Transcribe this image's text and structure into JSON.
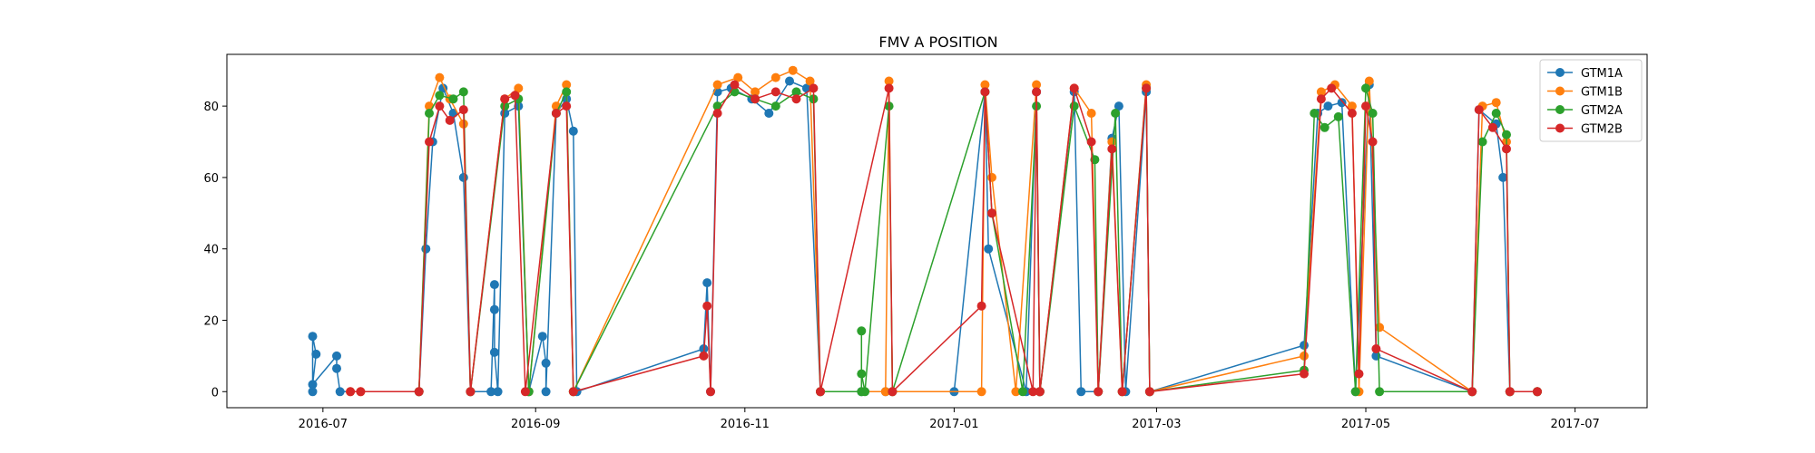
{
  "chart_data": {
    "type": "line",
    "title": "FMV A POSITION",
    "xlabel": "",
    "ylabel": "",
    "xlim": [
      "2016-06-03",
      "2017-07-22"
    ],
    "ylim": [
      -4.5,
      94.5
    ],
    "x_ticks": [
      "2016-07",
      "2016-09",
      "2016-11",
      "2017-01",
      "2017-03",
      "2017-05",
      "2017-07"
    ],
    "x_tick_dates": [
      "2016-07-01",
      "2016-09-01",
      "2016-11-01",
      "2017-01-01",
      "2017-03-01",
      "2017-05-01",
      "2017-07-01"
    ],
    "y_ticks": [
      0,
      20,
      40,
      60,
      80
    ],
    "legend": {
      "position": "top-right"
    },
    "grid": false,
    "markers": true,
    "series": [
      {
        "name": "GTM1A",
        "color": "#1f77b4",
        "points": [
          [
            "2016-06-28",
            0
          ],
          [
            "2016-06-28",
            15.5
          ],
          [
            "2016-06-29",
            10.5
          ],
          [
            "2016-06-28",
            2
          ],
          [
            "2016-07-05",
            10
          ],
          [
            "2016-07-05",
            6.5
          ],
          [
            "2016-07-06",
            0
          ],
          [
            "2016-07-29",
            0
          ],
          [
            "2016-07-31",
            40
          ],
          [
            "2016-08-02",
            70
          ],
          [
            "2016-08-05",
            85
          ],
          [
            "2016-08-08",
            78
          ],
          [
            "2016-08-11",
            60
          ],
          [
            "2016-08-13",
            0
          ],
          [
            "2016-08-19",
            0
          ],
          [
            "2016-08-20",
            30
          ],
          [
            "2016-08-20",
            23
          ],
          [
            "2016-08-20",
            11
          ],
          [
            "2016-08-21",
            0
          ],
          [
            "2016-08-23",
            78
          ],
          [
            "2016-08-27",
            80
          ],
          [
            "2016-08-30",
            0
          ],
          [
            "2016-09-03",
            15.5
          ],
          [
            "2016-09-04",
            8
          ],
          [
            "2016-09-04",
            0
          ],
          [
            "2016-09-07",
            78
          ],
          [
            "2016-09-10",
            82
          ],
          [
            "2016-09-12",
            73
          ],
          [
            "2016-09-13",
            0
          ],
          [
            "2016-10-20",
            12
          ],
          [
            "2016-10-21",
            30.5
          ],
          [
            "2016-10-22",
            0
          ],
          [
            "2016-10-24",
            84
          ],
          [
            "2016-10-28",
            85
          ],
          [
            "2016-11-03",
            82
          ],
          [
            "2016-11-08",
            78
          ],
          [
            "2016-11-14",
            87
          ],
          [
            "2016-11-19",
            85
          ],
          [
            "2016-11-23",
            0
          ],
          [
            "2016-12-05",
            0
          ],
          [
            "2016-12-12",
            0
          ],
          [
            "2017-01-01",
            0
          ],
          [
            "2017-01-10",
            84
          ],
          [
            "2017-01-11",
            40
          ],
          [
            "2017-01-22",
            0
          ],
          [
            "2017-01-25",
            84
          ],
          [
            "2017-01-26",
            0
          ],
          [
            "2017-02-05",
            84
          ],
          [
            "2017-02-07",
            0
          ],
          [
            "2017-02-12",
            0
          ],
          [
            "2017-02-16",
            71
          ],
          [
            "2017-02-18",
            80
          ],
          [
            "2017-02-20",
            0
          ],
          [
            "2017-02-26",
            84
          ],
          [
            "2017-02-27",
            0
          ],
          [
            "2017-04-13",
            13
          ],
          [
            "2017-04-17",
            78
          ],
          [
            "2017-04-20",
            80
          ],
          [
            "2017-04-24",
            81
          ],
          [
            "2017-04-28",
            0
          ],
          [
            "2017-05-02",
            86
          ],
          [
            "2017-05-04",
            10
          ],
          [
            "2017-06-01",
            0
          ],
          [
            "2017-06-03",
            79
          ],
          [
            "2017-06-08",
            75
          ],
          [
            "2017-06-10",
            60
          ],
          [
            "2017-06-12",
            0
          ],
          [
            "2017-06-20",
            0
          ]
        ]
      },
      {
        "name": "GTM1B",
        "color": "#ff7f0e",
        "points": [
          [
            "2016-07-09",
            0
          ],
          [
            "2016-07-12",
            0
          ],
          [
            "2016-07-29",
            0
          ],
          [
            "2016-08-01",
            80
          ],
          [
            "2016-08-04",
            88
          ],
          [
            "2016-08-07",
            82
          ],
          [
            "2016-08-11",
            75
          ],
          [
            "2016-08-13",
            0
          ],
          [
            "2016-08-23",
            82
          ],
          [
            "2016-08-27",
            85
          ],
          [
            "2016-08-30",
            0
          ],
          [
            "2016-09-07",
            80
          ],
          [
            "2016-09-10",
            86
          ],
          [
            "2016-09-12",
            0
          ],
          [
            "2016-10-24",
            86
          ],
          [
            "2016-10-30",
            88
          ],
          [
            "2016-11-04",
            84
          ],
          [
            "2016-11-10",
            88
          ],
          [
            "2016-11-15",
            90
          ],
          [
            "2016-11-20",
            87
          ],
          [
            "2016-11-23",
            0
          ],
          [
            "2016-12-12",
            0
          ],
          [
            "2016-12-13",
            87
          ],
          [
            "2016-12-14",
            0
          ],
          [
            "2017-01-09",
            0
          ],
          [
            "2017-01-10",
            86
          ],
          [
            "2017-01-12",
            60
          ],
          [
            "2017-01-19",
            0
          ],
          [
            "2017-01-25",
            86
          ],
          [
            "2017-01-26",
            0
          ],
          [
            "2017-02-05",
            85
          ],
          [
            "2017-02-10",
            78
          ],
          [
            "2017-02-12",
            0
          ],
          [
            "2017-02-16",
            70
          ],
          [
            "2017-02-19",
            0
          ],
          [
            "2017-02-26",
            86
          ],
          [
            "2017-02-27",
            0
          ],
          [
            "2017-04-13",
            10
          ],
          [
            "2017-04-18",
            84
          ],
          [
            "2017-04-22",
            86
          ],
          [
            "2017-04-27",
            80
          ],
          [
            "2017-04-29",
            0
          ],
          [
            "2017-05-02",
            87
          ],
          [
            "2017-05-05",
            18
          ],
          [
            "2017-06-01",
            0
          ],
          [
            "2017-06-04",
            80
          ],
          [
            "2017-06-08",
            81
          ],
          [
            "2017-06-11",
            70
          ],
          [
            "2017-06-12",
            0
          ],
          [
            "2017-06-20",
            0
          ]
        ]
      },
      {
        "name": "GTM2A",
        "color": "#2ca02c",
        "points": [
          [
            "2016-07-29",
            0
          ],
          [
            "2016-08-01",
            78
          ],
          [
            "2016-08-04",
            83
          ],
          [
            "2016-08-08",
            82
          ],
          [
            "2016-08-11",
            84
          ],
          [
            "2016-08-13",
            0
          ],
          [
            "2016-08-23",
            80
          ],
          [
            "2016-08-27",
            82
          ],
          [
            "2016-08-30",
            0
          ],
          [
            "2016-09-07",
            78
          ],
          [
            "2016-09-10",
            84
          ],
          [
            "2016-09-12",
            0
          ],
          [
            "2016-10-24",
            80
          ],
          [
            "2016-10-29",
            84
          ],
          [
            "2016-11-04",
            82
          ],
          [
            "2016-11-10",
            80
          ],
          [
            "2016-11-16",
            84
          ],
          [
            "2016-11-21",
            82
          ],
          [
            "2016-11-23",
            0
          ],
          [
            "2016-12-05",
            0
          ],
          [
            "2016-12-05",
            17
          ],
          [
            "2016-12-05",
            5
          ],
          [
            "2016-12-06",
            0
          ],
          [
            "2016-12-13",
            80
          ],
          [
            "2016-12-14",
            0
          ],
          [
            "2017-01-10",
            84
          ],
          [
            "2017-01-12",
            50
          ],
          [
            "2017-01-21",
            0
          ],
          [
            "2017-01-25",
            80
          ],
          [
            "2017-01-26",
            0
          ],
          [
            "2017-02-05",
            80
          ],
          [
            "2017-02-11",
            65
          ],
          [
            "2017-02-12",
            0
          ],
          [
            "2017-02-17",
            78
          ],
          [
            "2017-02-19",
            0
          ],
          [
            "2017-02-26",
            85
          ],
          [
            "2017-02-27",
            0
          ],
          [
            "2017-04-13",
            6
          ],
          [
            "2017-04-16",
            78
          ],
          [
            "2017-04-19",
            74
          ],
          [
            "2017-04-23",
            77
          ],
          [
            "2017-04-28",
            0
          ],
          [
            "2017-05-01",
            85
          ],
          [
            "2017-05-03",
            78
          ],
          [
            "2017-05-05",
            0
          ],
          [
            "2017-06-01",
            0
          ],
          [
            "2017-06-04",
            70
          ],
          [
            "2017-06-08",
            78
          ],
          [
            "2017-06-11",
            72
          ],
          [
            "2017-06-12",
            0
          ],
          [
            "2017-06-20",
            0
          ]
        ]
      },
      {
        "name": "GTM2B",
        "color": "#d62728",
        "points": [
          [
            "2016-07-09",
            0
          ],
          [
            "2016-07-12",
            0
          ],
          [
            "2016-07-29",
            0
          ],
          [
            "2016-08-01",
            70
          ],
          [
            "2016-08-04",
            80
          ],
          [
            "2016-08-07",
            76
          ],
          [
            "2016-08-11",
            79
          ],
          [
            "2016-08-13",
            0
          ],
          [
            "2016-08-23",
            82
          ],
          [
            "2016-08-26",
            83
          ],
          [
            "2016-08-29",
            0
          ],
          [
            "2016-09-07",
            78
          ],
          [
            "2016-09-10",
            80
          ],
          [
            "2016-09-12",
            0
          ],
          [
            "2016-10-20",
            10
          ],
          [
            "2016-10-21",
            24
          ],
          [
            "2016-10-22",
            0
          ],
          [
            "2016-10-24",
            78
          ],
          [
            "2016-10-29",
            86
          ],
          [
            "2016-11-04",
            82
          ],
          [
            "2016-11-10",
            84
          ],
          [
            "2016-11-16",
            82
          ],
          [
            "2016-11-21",
            85
          ],
          [
            "2016-11-23",
            0
          ],
          [
            "2016-12-13",
            85
          ],
          [
            "2016-12-14",
            0
          ],
          [
            "2017-01-09",
            24
          ],
          [
            "2017-01-10",
            84
          ],
          [
            "2017-01-12",
            50
          ],
          [
            "2017-01-24",
            0
          ],
          [
            "2017-01-25",
            84
          ],
          [
            "2017-01-26",
            0
          ],
          [
            "2017-02-05",
            85
          ],
          [
            "2017-02-10",
            70
          ],
          [
            "2017-02-12",
            0
          ],
          [
            "2017-02-16",
            68
          ],
          [
            "2017-02-19",
            0
          ],
          [
            "2017-02-26",
            85
          ],
          [
            "2017-02-27",
            0
          ],
          [
            "2017-04-13",
            5
          ],
          [
            "2017-04-18",
            82
          ],
          [
            "2017-04-21",
            85
          ],
          [
            "2017-04-27",
            78
          ],
          [
            "2017-04-29",
            5
          ],
          [
            "2017-05-01",
            80
          ],
          [
            "2017-05-03",
            70
          ],
          [
            "2017-05-04",
            12
          ],
          [
            "2017-06-01",
            0
          ],
          [
            "2017-06-03",
            79
          ],
          [
            "2017-06-07",
            74
          ],
          [
            "2017-06-11",
            68
          ],
          [
            "2017-06-12",
            0
          ],
          [
            "2017-06-20",
            0
          ]
        ]
      }
    ]
  }
}
